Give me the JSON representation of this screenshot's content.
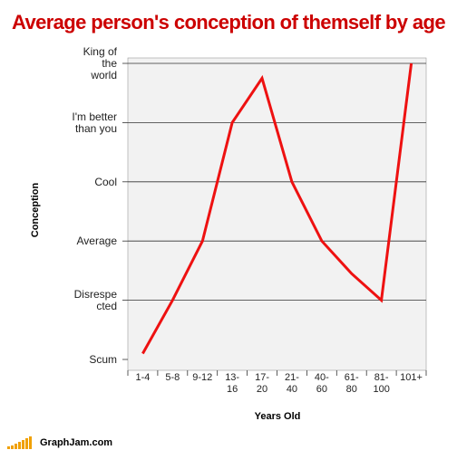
{
  "header": {
    "title": "Average person's conception of themself by age"
  },
  "footer": {
    "site": "GraphJam.com",
    "logo_icon": "bar-chart-logo-icon",
    "logo_color": "#f0a000"
  },
  "colors": {
    "line": "#ee1111",
    "title": "#cc0000",
    "plot_bg": "#f2f2f2",
    "grid": "#333333"
  },
  "chart_data": {
    "type": "line",
    "title": "Average person's conception of themself by age",
    "xlabel": "Years Old",
    "ylabel": "Conception",
    "categories": [
      "1-4",
      "5-8",
      "9-12",
      "13-16",
      "17-20",
      "21-40",
      "40-60",
      "61-80",
      "81-100",
      "101+"
    ],
    "category_lines": [
      [
        "1-4"
      ],
      [
        "5-8"
      ],
      [
        "9-12"
      ],
      [
        "13-",
        "16"
      ],
      [
        "17-",
        "20"
      ],
      [
        "21-",
        "40"
      ],
      [
        "40-",
        "60"
      ],
      [
        "61-",
        "80"
      ],
      [
        "81-",
        "100"
      ],
      [
        "101+"
      ]
    ],
    "y_levels": [
      "Scum",
      "Disrespected",
      "Average",
      "Cool",
      "I'm better than you",
      "King of the world"
    ],
    "y_level_lines": [
      [
        "Scum"
      ],
      [
        "Disrespe",
        "cted"
      ],
      [
        "Average"
      ],
      [
        "Cool"
      ],
      [
        "I'm better",
        "than you"
      ],
      [
        "King of",
        "the",
        "world"
      ]
    ],
    "ylim": [
      0,
      5
    ],
    "grid": true,
    "legend": "none",
    "series": [
      {
        "values": [
          0.1,
          1.0,
          2.0,
          4.0,
          4.75,
          3.0,
          2.0,
          1.45,
          1.0,
          5.0
        ]
      }
    ]
  }
}
